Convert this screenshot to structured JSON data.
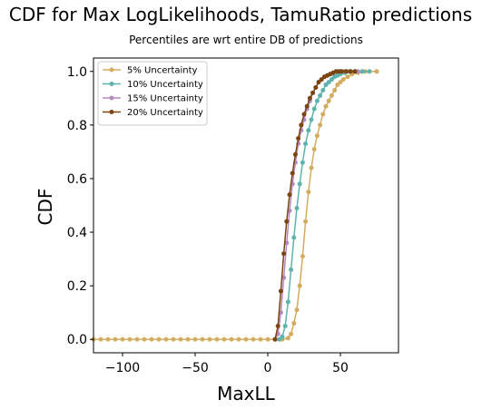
{
  "chart_data": {
    "type": "line",
    "title": "CDF for Max LogLikelihoods, TamuRatio predictions",
    "subtitle": "Percentiles are wrt entire DB of predictions",
    "xlabel": "MaxLL",
    "ylabel": "CDF",
    "xlim": [
      -120,
      90
    ],
    "ylim": [
      -0.05,
      1.05
    ],
    "xticks": [
      -100,
      -50,
      0,
      50
    ],
    "xtick_labels": [
      "−100",
      "−50",
      "0",
      "50"
    ],
    "yticks": [
      0.0,
      0.2,
      0.4,
      0.6,
      0.8,
      1.0
    ],
    "ytick_labels": [
      "0.0",
      "0.2",
      "0.4",
      "0.6",
      "0.8",
      "1.0"
    ],
    "grid": false,
    "legend_position": "top-left",
    "series": [
      {
        "name": "5% Uncertainty",
        "color": "#d4ac60",
        "x": [
          -120,
          -115,
          -110,
          -105,
          -100,
          -95,
          -90,
          -85,
          -80,
          -75,
          -70,
          -65,
          -60,
          -55,
          -50,
          -45,
          -40,
          -35,
          -30,
          -25,
          -20,
          -15,
          -10,
          -5,
          0,
          5,
          10,
          14,
          16,
          18,
          20,
          22,
          24,
          26,
          28,
          30,
          32,
          34,
          36,
          38,
          40,
          42,
          44,
          46,
          48,
          50,
          52,
          55,
          58,
          62,
          67,
          75
        ],
        "y": [
          0,
          0,
          0,
          0,
          0,
          0,
          0,
          0,
          0,
          0,
          0,
          0,
          0,
          0,
          0,
          0,
          0,
          0,
          0,
          0,
          0,
          0,
          0,
          0,
          0,
          0,
          0,
          0.005,
          0.02,
          0.06,
          0.11,
          0.2,
          0.31,
          0.44,
          0.55,
          0.64,
          0.71,
          0.76,
          0.8,
          0.84,
          0.87,
          0.89,
          0.91,
          0.93,
          0.95,
          0.96,
          0.97,
          0.98,
          0.99,
          0.995,
          1.0,
          1.0
        ]
      },
      {
        "name": "10% Uncertainty",
        "color": "#5fb3ad",
        "x": [
          8,
          10,
          12,
          14,
          16,
          18,
          20,
          22,
          24,
          26,
          28,
          30,
          32,
          34,
          36,
          38,
          40,
          42,
          44,
          46,
          48,
          50,
          53,
          56,
          60,
          65,
          70
        ],
        "y": [
          0,
          0.01,
          0.05,
          0.14,
          0.26,
          0.38,
          0.49,
          0.58,
          0.66,
          0.73,
          0.78,
          0.82,
          0.86,
          0.89,
          0.91,
          0.93,
          0.95,
          0.96,
          0.97,
          0.98,
          0.985,
          0.99,
          0.995,
          1.0,
          1.0,
          1.0,
          1.0
        ]
      },
      {
        "name": "15% Uncertainty",
        "color": "#b58ac0",
        "x": [
          5,
          7,
          9,
          11,
          13,
          15,
          17,
          19,
          21,
          23,
          25,
          27,
          29,
          31,
          33,
          35,
          37,
          39,
          41,
          43,
          45,
          47,
          50,
          53,
          57,
          62
        ],
        "y": [
          0,
          0.02,
          0.1,
          0.23,
          0.36,
          0.48,
          0.58,
          0.66,
          0.73,
          0.78,
          0.82,
          0.86,
          0.89,
          0.92,
          0.94,
          0.96,
          0.97,
          0.98,
          0.985,
          0.99,
          0.995,
          1.0,
          1.0,
          1.0,
          1.0,
          1.0
        ]
      },
      {
        "name": "20% Uncertainty",
        "color": "#7a4510",
        "x": [
          5,
          7,
          9,
          11,
          13,
          15,
          17,
          19,
          21,
          23,
          25,
          27,
          29,
          31,
          33,
          35,
          37,
          39,
          41,
          43,
          45,
          47,
          49,
          51,
          54,
          57,
          60
        ],
        "y": [
          0,
          0.05,
          0.18,
          0.32,
          0.44,
          0.54,
          0.62,
          0.69,
          0.75,
          0.8,
          0.84,
          0.87,
          0.9,
          0.92,
          0.94,
          0.96,
          0.97,
          0.98,
          0.985,
          0.99,
          0.995,
          1.0,
          1.0,
          1.0,
          1.0,
          1.0,
          1.0
        ]
      }
    ]
  }
}
